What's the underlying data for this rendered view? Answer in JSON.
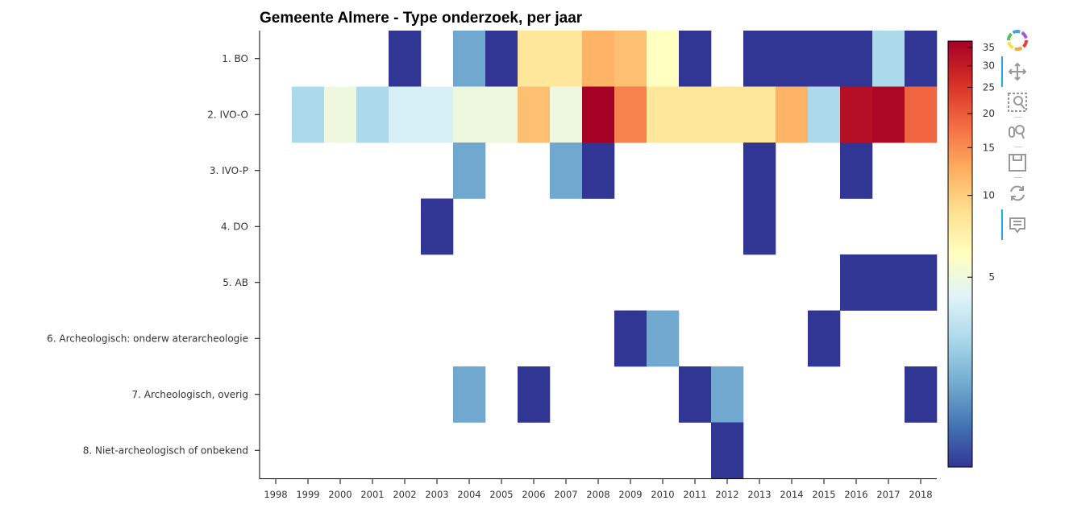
{
  "chart_data": {
    "type": "heatmap",
    "title": "Gemeente Almere - Type onderzoek, per jaar",
    "x": [
      "1998",
      "1999",
      "2000",
      "2001",
      "2002",
      "2003",
      "2004",
      "2005",
      "2006",
      "2007",
      "2008",
      "2009",
      "2010",
      "2011",
      "2012",
      "2013",
      "2014",
      "2015",
      "2016",
      "2017",
      "2018"
    ],
    "y": [
      "1. BO",
      "2. IVO-O",
      "3. IVO-P",
      "4. DO",
      "5. AB",
      "6. Archeologisch: onderw aterarcheologie",
      "7. Archeologisch, overig",
      "8. Niet-archeologisch of onbekend"
    ],
    "values": [
      [
        null,
        null,
        null,
        null,
        1,
        null,
        2,
        1,
        8,
        8,
        12,
        11,
        6,
        1,
        null,
        1,
        1,
        1,
        1,
        3,
        1
      ],
      [
        null,
        3,
        5,
        3,
        4,
        4,
        5,
        5,
        11,
        5,
        37,
        16,
        8,
        8,
        8,
        8,
        12,
        3,
        33,
        35,
        19
      ],
      [
        null,
        null,
        null,
        null,
        null,
        null,
        2,
        null,
        null,
        2,
        1,
        null,
        null,
        null,
        null,
        1,
        null,
        null,
        1,
        null,
        null
      ],
      [
        null,
        null,
        null,
        null,
        null,
        1,
        null,
        null,
        null,
        null,
        null,
        null,
        null,
        null,
        null,
        1,
        null,
        null,
        null,
        null,
        null
      ],
      [
        null,
        null,
        null,
        null,
        null,
        null,
        null,
        null,
        null,
        null,
        null,
        null,
        null,
        null,
        null,
        null,
        null,
        null,
        1,
        1,
        1
      ],
      [
        null,
        null,
        null,
        null,
        null,
        null,
        null,
        null,
        null,
        null,
        null,
        1,
        2,
        null,
        null,
        null,
        null,
        1,
        null,
        null,
        null
      ],
      [
        null,
        null,
        null,
        null,
        null,
        null,
        2,
        null,
        1,
        null,
        null,
        null,
        null,
        1,
        2,
        null,
        null,
        null,
        null,
        null,
        1
      ],
      [
        null,
        null,
        null,
        null,
        null,
        null,
        null,
        null,
        null,
        null,
        null,
        null,
        null,
        null,
        1,
        null,
        null,
        null,
        null,
        null,
        null
      ]
    ],
    "colorbar": {
      "scale": "log",
      "range": [
        1,
        37
      ],
      "ticks": [
        5,
        10,
        15,
        20,
        25,
        30,
        35
      ],
      "palette": [
        "#313695",
        "#4575b4",
        "#74add1",
        "#abd9e9",
        "#e0f3f8",
        "#ffffbf",
        "#fee090",
        "#fdae61",
        "#f46d43",
        "#d73027",
        "#a50026"
      ]
    },
    "legend_position": "right"
  },
  "toolbar": {
    "icons": [
      "bokeh-logo-icon",
      "pan-icon",
      "box-zoom-icon",
      "wheel-zoom-icon",
      "save-icon",
      "reset-icon",
      "hover-icon"
    ]
  }
}
